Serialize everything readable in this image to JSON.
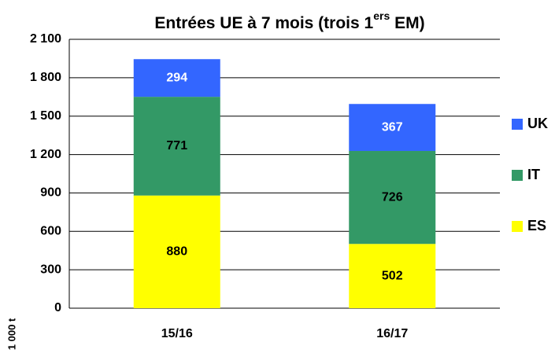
{
  "chart_data": {
    "type": "stacked_bar",
    "title": {
      "text": "Entrées UE à 7 mois (trois 1",
      "superscript": "ers",
      "suffix": " EM)"
    },
    "y_label": "1 000 t",
    "categories": [
      "15/16",
      "16/17"
    ],
    "series": [
      {
        "name": "ES",
        "color": "#ffff00",
        "label_color": "#000000",
        "values": [
          880,
          502
        ]
      },
      {
        "name": "IT",
        "color": "#339966",
        "label_color": "#000000",
        "values": [
          771,
          726
        ]
      },
      {
        "name": "UK",
        "color": "#3366ff",
        "label_color": "#ffffff",
        "values": [
          294,
          367
        ]
      }
    ],
    "ylim": [
      0,
      2100
    ],
    "yticks": [
      0,
      300,
      600,
      900,
      {
        "value": 1200,
        "label": "1 200"
      },
      {
        "value": 1500,
        "label": "1 500"
      },
      {
        "value": 1800,
        "label": "1 800"
      },
      {
        "value": 2100,
        "label": "2 100"
      }
    ],
    "grid": true,
    "legend": "right"
  }
}
